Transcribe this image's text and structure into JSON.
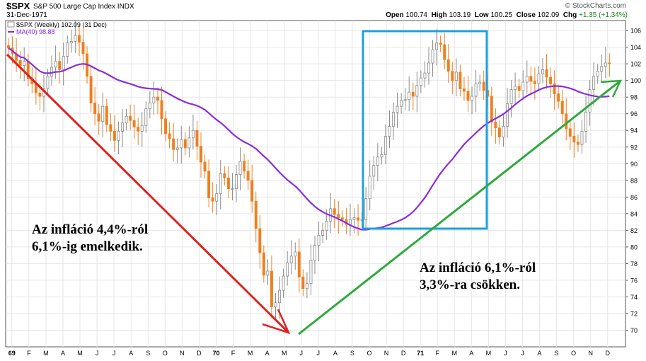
{
  "header": {
    "symbol": "$SPX",
    "name": "S&P 500 Large Cap Index",
    "exchange": "INDX",
    "date": "31-Dec-1971",
    "brand": "© StockCharts.com",
    "open_label": "Open",
    "open": "100.74",
    "high_label": "High",
    "high": "103.19",
    "low_label": "Low",
    "low": "100.25",
    "close_label": "Close",
    "close": "102.09",
    "chg_label": "Chg",
    "chg": "+1.35 (+1.34%)"
  },
  "legend": {
    "price": "$SPX (Weekly) 102.09 (31 Dec)",
    "ma": "MA(40) 98.88"
  },
  "annotations": {
    "left_line1": "Az infláció 4,4%-ról",
    "left_line2": "6,1%-ig emelkedik.",
    "right_line1": "Az infláció 6,1%-ról",
    "right_line2": "3,3%-ra csökken."
  },
  "colors": {
    "up": "#8a8a8a",
    "down": "#f07f1e",
    "ma": "#8a2be2",
    "red_arrow": "#e02020",
    "green_arrow": "#2eaa3c",
    "box": "#1ea0dc"
  },
  "chart_data": {
    "type": "candlestick",
    "title": "$SPX S&P 500 Large Cap Index",
    "series_name": "$SPX (Weekly)",
    "x_ticks": [
      "69",
      "F",
      "M",
      "A",
      "M",
      "J",
      "J",
      "A",
      "S",
      "O",
      "N",
      "D",
      "70",
      "F",
      "M",
      "A",
      "M",
      "J",
      "J",
      "A",
      "S",
      "O",
      "N",
      "D",
      "71",
      "F",
      "M",
      "A",
      "M",
      "J",
      "J",
      "A",
      "S",
      "O",
      "N",
      "D"
    ],
    "y_ticks": [
      70,
      72,
      74,
      76,
      78,
      80,
      82,
      84,
      86,
      88,
      90,
      92,
      94,
      96,
      98,
      100,
      102,
      104,
      106
    ],
    "ylim": [
      68,
      107.2
    ],
    "x_range_weeks": [
      0,
      156
    ],
    "weekly_close": [
      103.9,
      103.2,
      102.4,
      101.8,
      102.3,
      100.2,
      99.6,
      98.5,
      98.1,
      99.0,
      100.5,
      101.6,
      102.3,
      101.3,
      102.9,
      104.5,
      104.7,
      105.4,
      104.6,
      103.2,
      100.5,
      97.3,
      96.0,
      95.1,
      96.9,
      94.7,
      93.9,
      92.8,
      93.9,
      94.9,
      95.7,
      95.2,
      94.4,
      93.9,
      94.6,
      96.6,
      97.3,
      98.0,
      97.6,
      95.4,
      93.6,
      93.0,
      91.7,
      91.9,
      92.9,
      91.9,
      93.1,
      94.0,
      92.1,
      90.2,
      89.1,
      85.9,
      85.5,
      86.4,
      88.8,
      88.3,
      87.0,
      87.0,
      88.7,
      90.3,
      89.1,
      88.0,
      85.5,
      82.2,
      79.3,
      76.6,
      77.1,
      72.8,
      73.3,
      74.8,
      76.5,
      78.1,
      78.9,
      79.4,
      76.4,
      75.0,
      75.6,
      78.4,
      80.2,
      81.4,
      82.0,
      83.1,
      84.6,
      83.9,
      83.5,
      83.3,
      82.7,
      83.3,
      83.5,
      83.2,
      83.3,
      85.8,
      88.5,
      89.8,
      90.8,
      91.1,
      93.3,
      94.5,
      96.2,
      96.9,
      97.6,
      97.7,
      98.6,
      98.1,
      99.4,
      100.3,
      100.9,
      102.1,
      103.7,
      104.5,
      104.3,
      102.5,
      101.1,
      100.0,
      101.0,
      99.0,
      98.7,
      97.6,
      98.1,
      99.6,
      99.8,
      98.8,
      98.1,
      95.0,
      94.3,
      93.2,
      94.5,
      97.2,
      98.9,
      99.3,
      98.8,
      99.8,
      100.5,
      99.9,
      99.6,
      100.8,
      101.3,
      100.4,
      99.6,
      98.4,
      97.5,
      96.0,
      94.2,
      93.3,
      92.6,
      92.3,
      93.9,
      96.2,
      98.9,
      100.5,
      101.1,
      101.7,
      102.1,
      102.09
    ],
    "ma_period": 40,
    "ma_last": 98.88
  }
}
